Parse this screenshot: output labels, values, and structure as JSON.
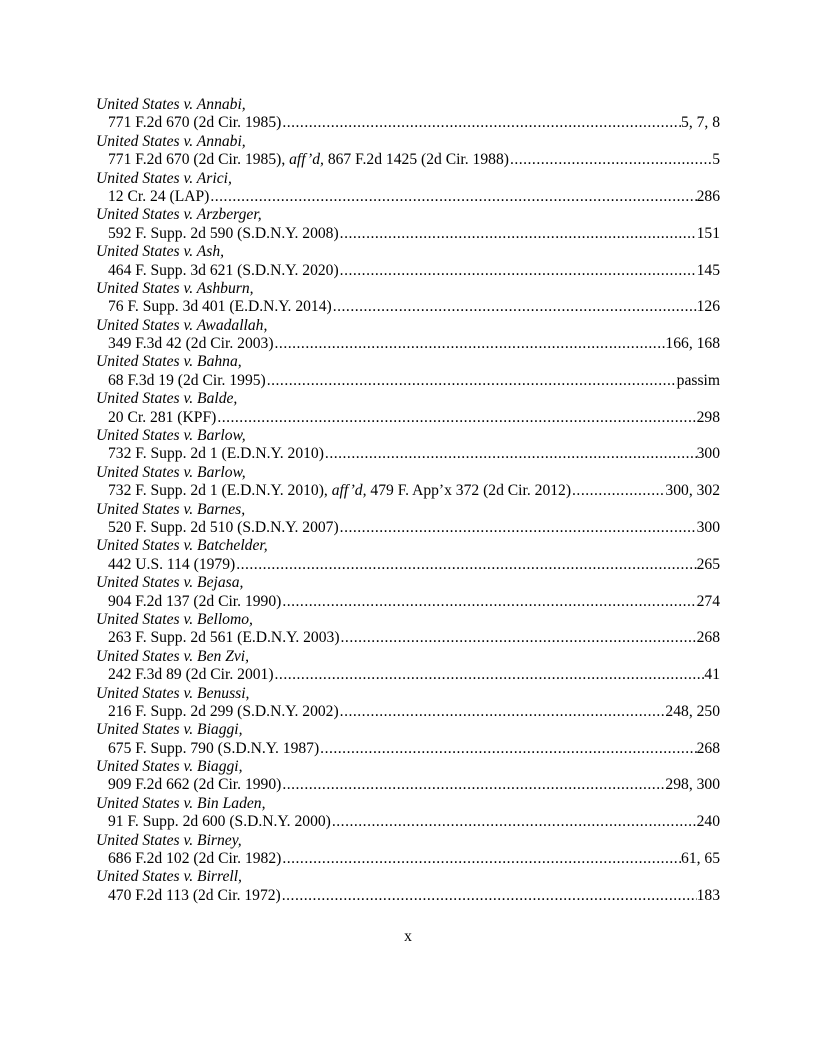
{
  "entries": [
    {
      "name": "United States v. Annabi,",
      "cite": "771 F.2d 670 (2d Cir. 1985)",
      "pages": "5, 7, 8"
    },
    {
      "name": "United States v. Annabi,",
      "cite": "771 F.2d 670 (2d Cir. 1985), ",
      "signal": "aff’d,",
      "cite_post": " 867 F.2d 1425 (2d Cir. 1988) ",
      "pages": "5"
    },
    {
      "name": "United States v. Arici,",
      "cite": "12 Cr. 24 (LAP)",
      "pages": "286"
    },
    {
      "name": "United States v. Arzberger,",
      "cite": "592 F. Supp. 2d 590 (S.D.N.Y. 2008)",
      "pages": "151"
    },
    {
      "name": "United States v. Ash,",
      "cite": "464 F. Supp. 3d 621 (S.D.N.Y. 2020)",
      "pages": "145"
    },
    {
      "name": "United States v. Ashburn,",
      "cite": "76 F. Supp. 3d 401 (E.D.N.Y. 2014)",
      "pages": "126"
    },
    {
      "name": "United States v. Awadallah,",
      "cite": "349 F.3d 42 (2d Cir. 2003)",
      "pages": "166, 168"
    },
    {
      "name": "United States v. Bahna,",
      "cite": "68 F.3d 19 (2d Cir. 1995)",
      "pages": "passim"
    },
    {
      "name": "United States v. Balde,",
      "cite": "20 Cr. 281 (KPF)",
      "pages": "298"
    },
    {
      "name": "United States v. Barlow,",
      "cite": "732 F. Supp. 2d 1 (E.D.N.Y. 2010)",
      "pages": "300"
    },
    {
      "name": "United States v. Barlow,",
      "cite": "732 F. Supp. 2d 1 (E.D.N.Y. 2010), ",
      "signal": "aff’d,",
      "cite_post": " 479 F. App’x 372 (2d Cir. 2012)",
      "pages": "300, 302"
    },
    {
      "name": "United States v. Barnes,",
      "cite": "520 F. Supp. 2d 510 (S.D.N.Y. 2007)",
      "pages": "300"
    },
    {
      "name": "United States v. Batchelder,",
      "cite": "442 U.S. 114 (1979) ",
      "pages": "265"
    },
    {
      "name": "United States v. Bejasa,",
      "cite": "904 F.2d 137 (2d Cir. 1990)",
      "pages": "274"
    },
    {
      "name": "United States v. Bellomo,",
      "cite": "263 F. Supp. 2d 561 (E.D.N.Y. 2003)",
      "pages": "268"
    },
    {
      "name": "United States v. Ben Zvi,",
      "cite": "242 F.3d 89 (2d Cir. 2001)",
      "pages": "41"
    },
    {
      "name": "United States v. Benussi,",
      "cite": "216 F. Supp. 2d 299 (S.D.N.Y. 2002)",
      "pages": "248, 250"
    },
    {
      "name": "United States v. Biaggi,",
      "cite": "675 F. Supp. 790 (S.D.N.Y. 1987)",
      "pages": "268"
    },
    {
      "name": "United States v. Biaggi,",
      "cite": "909 F.2d 662 (2d Cir. 1990)",
      "pages": "298, 300"
    },
    {
      "name": "United States v. Bin Laden,",
      "cite": "91 F. Supp. 2d 600 (S.D.N.Y. 2000)",
      "pages": "240"
    },
    {
      "name": "United States v. Birney,",
      "cite": "686 F.2d 102 (2d Cir. 1982)",
      "pages": "61, 65"
    },
    {
      "name": "United States v. Birrell,",
      "cite": "470 F.2d 113 (2d Cir. 1972)",
      "pages": "183"
    }
  ],
  "page_number": "x"
}
